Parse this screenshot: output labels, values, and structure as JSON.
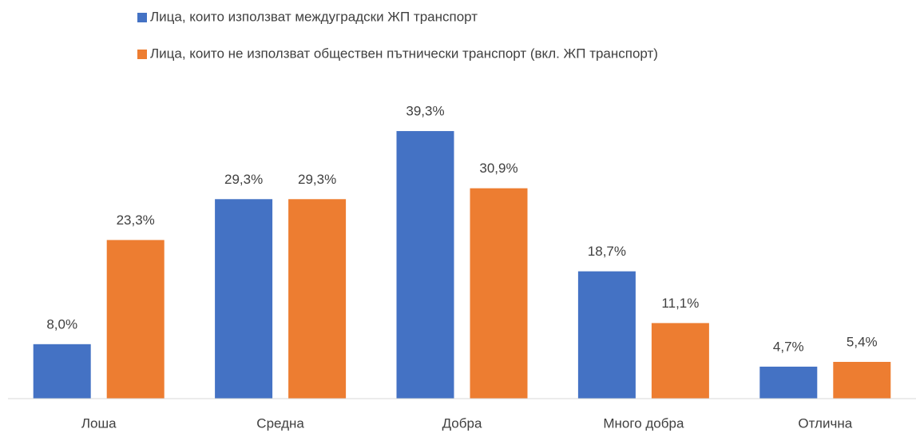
{
  "chart_data": {
    "type": "bar",
    "categories": [
      "Лоша",
      "Средна",
      "Добра",
      "Много добра",
      "Отлична"
    ],
    "series": [
      {
        "name": "Лица, които използват междуградски ЖП транспорт",
        "color": "#4472c4",
        "values": [
          8.0,
          29.3,
          39.3,
          18.7,
          4.7
        ],
        "value_labels": [
          "8,0%",
          "29,3%",
          "39,3%",
          "18,7%",
          "4,7%"
        ]
      },
      {
        "name": "Лица, които не използват обществен пътнически транспорт (вкл. ЖП транспорт)",
        "color": "#ed7d31",
        "values": [
          23.3,
          29.3,
          30.9,
          11.1,
          5.4
        ],
        "value_labels": [
          "23,3%",
          "29,3%",
          "30,9%",
          "11,1%",
          "5,4%"
        ]
      }
    ],
    "ylim": [
      0,
      44
    ],
    "legend": "top"
  }
}
